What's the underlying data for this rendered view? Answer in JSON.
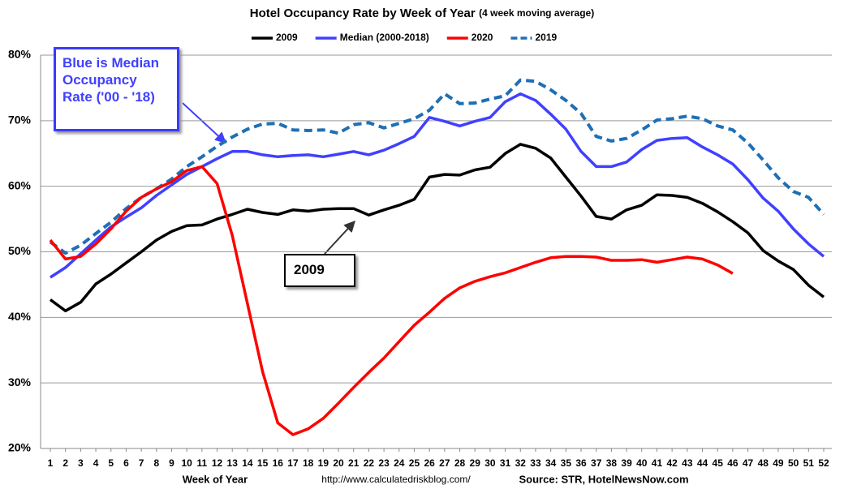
{
  "chart_data": {
    "type": "line",
    "title": "Hotel Occupancy Rate by  Week of Year",
    "subtitle": "(4 week moving average)",
    "x_label": "Week of Year",
    "url": "http://www.calculatedriskblog.com/",
    "source": "Source: STR, HotelNewsNow.com",
    "annotations": [
      "Blue is Median Occupancy Rate ('00 - '18)",
      "2009"
    ],
    "categories": [
      "1",
      "2",
      "3",
      "4",
      "5",
      "6",
      "7",
      "8",
      "9",
      "10",
      "11",
      "12",
      "13",
      "14",
      "15",
      "16",
      "17",
      "18",
      "19",
      "20",
      "21",
      "22",
      "23",
      "24",
      "25",
      "26",
      "27",
      "28",
      "29",
      "30",
      "31",
      "32",
      "33",
      "34",
      "35",
      "36",
      "37",
      "38",
      "39",
      "40",
      "41",
      "42",
      "43",
      "44",
      "45",
      "46",
      "47",
      "48",
      "49",
      "50",
      "51",
      "52"
    ],
    "ylim": [
      20,
      80
    ],
    "yticks": [
      {
        "value": 20,
        "label": "20%"
      },
      {
        "value": 30,
        "label": "30%"
      },
      {
        "value": 40,
        "label": "40%"
      },
      {
        "value": 50,
        "label": "50%"
      },
      {
        "value": 60,
        "label": "60%"
      },
      {
        "value": 70,
        "label": "70%"
      },
      {
        "value": 80,
        "label": "80%"
      }
    ],
    "grid": true,
    "legend": "top",
    "series": [
      {
        "name": "2009",
        "color": "#000000",
        "dash": false,
        "values": [
          42.7,
          41.0,
          42.3,
          45.1,
          46.6,
          48.3,
          50.0,
          51.8,
          53.1,
          54.0,
          54.1,
          55.0,
          55.7,
          56.5,
          56.0,
          55.7,
          56.4,
          56.2,
          56.5,
          56.6,
          56.6,
          55.6,
          56.4,
          57.1,
          58.0,
          61.4,
          61.8,
          61.7,
          62.5,
          62.9,
          65.0,
          66.4,
          65.8,
          64.3,
          61.4,
          58.5,
          55.4,
          55.0,
          56.4,
          57.1,
          58.7,
          58.6,
          58.3,
          57.4,
          56.1,
          54.6,
          52.9,
          50.2,
          48.6,
          47.3,
          44.9,
          43.1
        ]
      },
      {
        "name": "Median (2000-2018)",
        "color": "#4040ff",
        "dash": false,
        "values": [
          46.1,
          47.6,
          49.7,
          51.8,
          53.8,
          55.3,
          56.7,
          58.6,
          60.2,
          61.8,
          63.0,
          64.2,
          65.3,
          65.3,
          64.8,
          64.5,
          64.7,
          64.8,
          64.5,
          64.9,
          65.3,
          64.8,
          65.5,
          66.5,
          67.6,
          70.5,
          69.9,
          69.2,
          69.9,
          70.5,
          72.9,
          74.1,
          73.1,
          71.0,
          68.7,
          65.3,
          63.0,
          63.0,
          63.7,
          65.6,
          67.0,
          67.3,
          67.4,
          66.0,
          64.8,
          63.4,
          61.0,
          58.2,
          56.2,
          53.5,
          51.2,
          49.3
        ]
      },
      {
        "name": "2020",
        "color": "#ff0000",
        "dash": false,
        "values": [
          51.8,
          48.9,
          49.3,
          51.2,
          53.5,
          56.2,
          58.3,
          59.6,
          60.7,
          62.4,
          63.0,
          60.4,
          52.5,
          42.1,
          31.7,
          23.9,
          22.1,
          23.0,
          24.6,
          26.9,
          29.3,
          31.6,
          33.8,
          36.3,
          38.8,
          40.8,
          42.9,
          44.5,
          45.5,
          46.2,
          46.8,
          47.6,
          48.4,
          49.1,
          49.3,
          49.3,
          49.2,
          48.7,
          48.7,
          48.8,
          48.4,
          48.8,
          49.2,
          48.9,
          48.0,
          46.7,
          null,
          null,
          null,
          null,
          null,
          null
        ]
      },
      {
        "name": "2019",
        "color": "#1f6fb5",
        "dash": true,
        "values": [
          51.5,
          49.8,
          51.0,
          52.8,
          54.5,
          56.6,
          58.3,
          59.6,
          61.1,
          63.0,
          64.5,
          66.1,
          67.5,
          68.7,
          69.5,
          69.6,
          68.6,
          68.5,
          68.6,
          68.1,
          69.4,
          69.7,
          68.9,
          69.6,
          70.3,
          71.6,
          74.1,
          72.6,
          72.7,
          73.3,
          73.8,
          76.2,
          76.0,
          74.7,
          73.1,
          71.1,
          67.6,
          66.9,
          67.3,
          68.6,
          70.1,
          70.3,
          70.7,
          70.3,
          69.2,
          68.6,
          66.6,
          64.0,
          61.3,
          59.2,
          58.3,
          55.7
        ]
      }
    ]
  }
}
